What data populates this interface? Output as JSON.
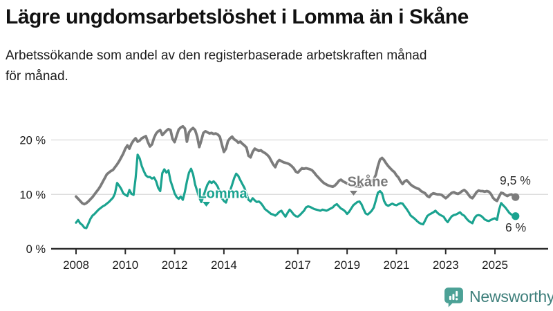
{
  "header": {
    "title": "Lägre ungdomsarbetslöshet i Lomma än i Skåne",
    "subtitle": "Arbetssökande som andel av den registerbaserade arbetskraften månad\nför månad."
  },
  "chart_data": {
    "type": "line",
    "frequency": "monthly",
    "x_start": "2008-01",
    "x_end": "2025-11",
    "unit": "%",
    "grid": "horizontal",
    "y_ticks": [
      {
        "value": 0,
        "label": "0 %"
      },
      {
        "value": 10,
        "label": "10 %"
      },
      {
        "value": 20,
        "label": "20 %"
      }
    ],
    "x_ticks": [
      {
        "year": 2008,
        "label": "2008"
      },
      {
        "year": 2010,
        "label": "2010"
      },
      {
        "year": 2012,
        "label": "2012"
      },
      {
        "year": 2014,
        "label": "2014"
      },
      {
        "year": 2017,
        "label": "2017"
      },
      {
        "year": 2019,
        "label": "2019"
      },
      {
        "year": 2021,
        "label": "2021"
      },
      {
        "year": 2023,
        "label": "2023"
      },
      {
        "year": 2025,
        "label": "2025"
      }
    ],
    "series": [
      {
        "name": "Lomma",
        "color": "#1BA390",
        "end_label": "6 %",
        "end_value": 6.0,
        "values": [
          4.8,
          5.3,
          4.7,
          4.4,
          3.9,
          3.8,
          4.6,
          5.5,
          6.1,
          6.4,
          6.8,
          7.2,
          7.5,
          7.8,
          8.0,
          8.3,
          8.6,
          9.0,
          9.4,
          10.2,
          12.1,
          11.6,
          11.0,
          10.2,
          9.9,
          9.7,
          10.8,
          10.1,
          9.9,
          13.0,
          17.3,
          16.6,
          15.2,
          14.3,
          13.5,
          13.2,
          13.2,
          12.9,
          13.1,
          12.4,
          11.2,
          10.6,
          13.9,
          14.6,
          14.0,
          14.4,
          12.5,
          11.4,
          10.2,
          9.5,
          9.2,
          9.6,
          9.0,
          10.5,
          12.4,
          14.0,
          14.7,
          13.7,
          11.8,
          10.6,
          9.4,
          8.6,
          9.6,
          10.8,
          11.8,
          12.4,
          12.1,
          12.4,
          12.0,
          11.4,
          10.4,
          9.3,
          8.8,
          8.5,
          9.6,
          10.6,
          11.8,
          13.0,
          13.8,
          13.4,
          12.6,
          11.9,
          11.2,
          10.1,
          9.0,
          8.7,
          9.3,
          8.9,
          8.6,
          8.7,
          8.4,
          7.9,
          7.3,
          7.0,
          6.7,
          6.4,
          6.3,
          6.1,
          6.4,
          6.8,
          7.0,
          6.4,
          5.9,
          6.6,
          7.2,
          6.8,
          6.3,
          6.0,
          5.9,
          6.2,
          6.6,
          7.0,
          7.6,
          7.8,
          7.7,
          7.5,
          7.3,
          7.2,
          7.1,
          7.0,
          7.2,
          7.1,
          7.0,
          7.2,
          7.4,
          7.6,
          8.0,
          8.2,
          7.8,
          7.4,
          7.2,
          6.9,
          6.4,
          6.8,
          7.4,
          8.0,
          8.3,
          8.6,
          8.7,
          8.2,
          7.3,
          6.5,
          6.3,
          6.6,
          7.0,
          7.6,
          8.9,
          10.3,
          10.6,
          10.2,
          8.8,
          8.1,
          7.9,
          8.1,
          8.3,
          8.1,
          8.0,
          8.2,
          8.4,
          8.3,
          7.8,
          7.3,
          6.7,
          6.1,
          5.8,
          5.5,
          5.1,
          4.8,
          4.6,
          4.5,
          5.2,
          6.0,
          6.3,
          6.5,
          6.7,
          7.0,
          6.6,
          6.3,
          6.1,
          5.9,
          5.3,
          4.9,
          5.5,
          6.0,
          6.2,
          6.3,
          6.5,
          6.7,
          6.3,
          6.1,
          5.6,
          5.2,
          4.9,
          4.7,
          5.6,
          6.1,
          6.2,
          6.1,
          5.8,
          5.4,
          5.2,
          5.1,
          5.3,
          5.5,
          5.6,
          5.3,
          7.2,
          8.4,
          8.0,
          7.6,
          7.1,
          6.6,
          6.3,
          6.1,
          6.0
        ]
      },
      {
        "name": "Skåne",
        "color": "#7C7C7C",
        "end_label": "9,5 %",
        "end_value": 9.5,
        "values": [
          9.6,
          9.2,
          8.8,
          8.4,
          8.2,
          8.4,
          8.7,
          9.1,
          9.5,
          10.0,
          10.5,
          11.0,
          11.6,
          12.3,
          13.0,
          13.7,
          14.0,
          14.3,
          14.5,
          15.0,
          15.5,
          16.1,
          16.8,
          17.5,
          18.4,
          19.0,
          18.4,
          19.3,
          19.9,
          20.3,
          19.7,
          19.9,
          20.3,
          20.5,
          20.7,
          19.6,
          18.8,
          19.2,
          20.4,
          21.2,
          21.6,
          21.8,
          20.9,
          21.3,
          21.7,
          22.0,
          21.8,
          20.2,
          19.6,
          20.8,
          21.9,
          22.3,
          22.5,
          22.1,
          19.7,
          21.4,
          21.9,
          22.2,
          21.8,
          20.6,
          18.7,
          19.9,
          21.3,
          21.6,
          21.4,
          21.2,
          21.3,
          21.1,
          21.2,
          21.0,
          20.6,
          19.2,
          17.8,
          18.4,
          19.8,
          20.3,
          20.6,
          20.1,
          19.9,
          19.5,
          19.7,
          19.3,
          19.0,
          18.6,
          17.1,
          16.8,
          17.8,
          18.4,
          18.2,
          18.0,
          18.1,
          17.8,
          17.6,
          17.3,
          16.9,
          16.2,
          15.5,
          15.0,
          15.9,
          16.3,
          16.1,
          15.9,
          15.8,
          15.7,
          15.5,
          15.2,
          14.8,
          14.2,
          14.0,
          14.4,
          14.8,
          14.7,
          14.8,
          14.7,
          14.6,
          14.4,
          14.0,
          13.5,
          13.1,
          12.7,
          12.3,
          12.0,
          11.8,
          11.6,
          11.5,
          11.4,
          11.6,
          12.0,
          12.5,
          12.7,
          12.4,
          12.2,
          12.0,
          11.8,
          11.7,
          11.6,
          11.5,
          11.5,
          11.4,
          11.5,
          11.6,
          11.7,
          11.9,
          12.1,
          12.4,
          12.8,
          13.6,
          15.2,
          16.4,
          16.7,
          16.3,
          15.7,
          15.2,
          14.8,
          14.4,
          14.1,
          13.5,
          13.1,
          12.4,
          11.9,
          12.4,
          12.6,
          12.2,
          11.8,
          11.5,
          11.3,
          11.1,
          11.0,
          10.6,
          10.4,
          10.2,
          9.7,
          9.5,
          10.0,
          10.2,
          10.1,
          10.0,
          10.0,
          9.9,
          9.6,
          9.3,
          9.6,
          10.0,
          10.3,
          10.4,
          10.2,
          10.1,
          10.3,
          10.6,
          10.8,
          10.5,
          10.0,
          9.5,
          9.3,
          9.8,
          10.4,
          10.7,
          10.6,
          10.6,
          10.5,
          10.6,
          10.5,
          10.1,
          9.4,
          9.0,
          8.8,
          9.6,
          10.3,
          10.2,
          9.9,
          9.7,
          9.9,
          10.0,
          9.8,
          9.5
        ]
      }
    ],
    "colors": {
      "grid": "#DADADA",
      "axis": "#2B2B2B",
      "tick_text": "#1A1A1A"
    }
  },
  "footer": {
    "brand": "Newsworthy",
    "brand_color": "#3E7F7B",
    "logo_color": "#4CA196"
  }
}
